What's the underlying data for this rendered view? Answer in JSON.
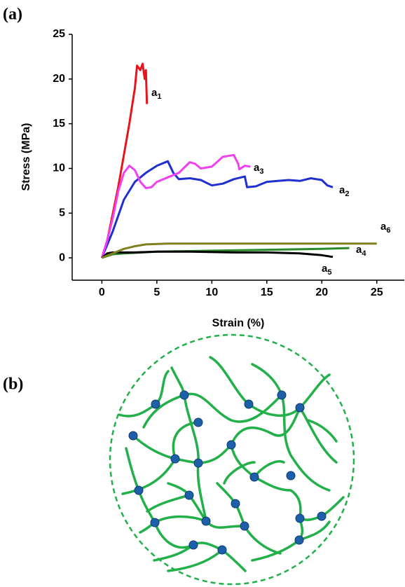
{
  "panels": {
    "a": "(a)",
    "b": "(b)"
  },
  "chart_data": {
    "type": "line",
    "x_label": "Strain (%)",
    "y_label": "Stress (MPa)",
    "xlim": [
      -2.7,
      27.5
    ],
    "ylim": [
      -2.5,
      25
    ],
    "xticks": [
      0,
      5,
      10,
      15,
      20,
      25
    ],
    "yticks": [
      0,
      5,
      10,
      15,
      20,
      25
    ],
    "grid": false,
    "series": [
      {
        "name": "a1",
        "color": "#e8141b",
        "x": [
          0,
          0.5,
          1,
          1.5,
          2,
          2.5,
          3,
          3.2,
          3.5,
          3.7,
          3.9,
          4.0,
          4.1
        ],
        "values": [
          0,
          2,
          5,
          8,
          11.5,
          15,
          19,
          21.5,
          21,
          21.7,
          20,
          21,
          17.2
        ]
      },
      {
        "name": "a2",
        "color": "#1f2fd0",
        "x": [
          0,
          1,
          2,
          3,
          4,
          5,
          6,
          6.5,
          7,
          8,
          9,
          10,
          11,
          12,
          13,
          13.2,
          14,
          15,
          16,
          17,
          18,
          19,
          20,
          20.5,
          21
        ],
        "values": [
          0,
          3,
          6.5,
          8.5,
          9.5,
          10.3,
          10.8,
          9.5,
          8.8,
          8.9,
          8.7,
          8.1,
          8.3,
          8.8,
          9.1,
          7.9,
          8,
          8.5,
          8.6,
          8.7,
          8.6,
          8.9,
          8.7,
          8.1,
          7.9
        ]
      },
      {
        "name": "a3",
        "color": "#f040f0",
        "x": [
          0,
          0.5,
          1,
          1.5,
          2,
          2.5,
          3,
          3.5,
          4,
          4.5,
          5,
          6,
          7,
          8,
          8.5,
          9,
          10,
          11,
          12,
          12.4,
          12.5,
          13,
          13.5
        ],
        "values": [
          0,
          2,
          4.5,
          7.5,
          9.5,
          10.3,
          9.8,
          8.5,
          7.8,
          7.9,
          8.5,
          9,
          9.5,
          10.7,
          10.5,
          10,
          10.2,
          11.3,
          11.5,
          10.5,
          9.9,
          10.3,
          10.2
        ]
      },
      {
        "name": "a4",
        "color": "#2a8a2a",
        "x": [
          0,
          1,
          2,
          5,
          10,
          15,
          20,
          22.5
        ],
        "values": [
          0,
          0.4,
          0.5,
          0.7,
          0.8,
          0.9,
          1.0,
          1.1
        ]
      },
      {
        "name": "a5",
        "color": "#000000",
        "x": [
          0,
          0.5,
          1,
          3,
          5,
          8,
          12,
          15,
          18,
          20,
          21
        ],
        "values": [
          0,
          0.5,
          0.6,
          0.6,
          0.7,
          0.7,
          0.6,
          0.6,
          0.5,
          0.3,
          0.1
        ]
      },
      {
        "name": "a6",
        "color": "#808020",
        "x": [
          0,
          1,
          2,
          3,
          4,
          6,
          10,
          15,
          20,
          25
        ],
        "values": [
          0,
          0.5,
          1,
          1.3,
          1.5,
          1.6,
          1.6,
          1.6,
          1.6,
          1.6
        ]
      }
    ]
  }
}
